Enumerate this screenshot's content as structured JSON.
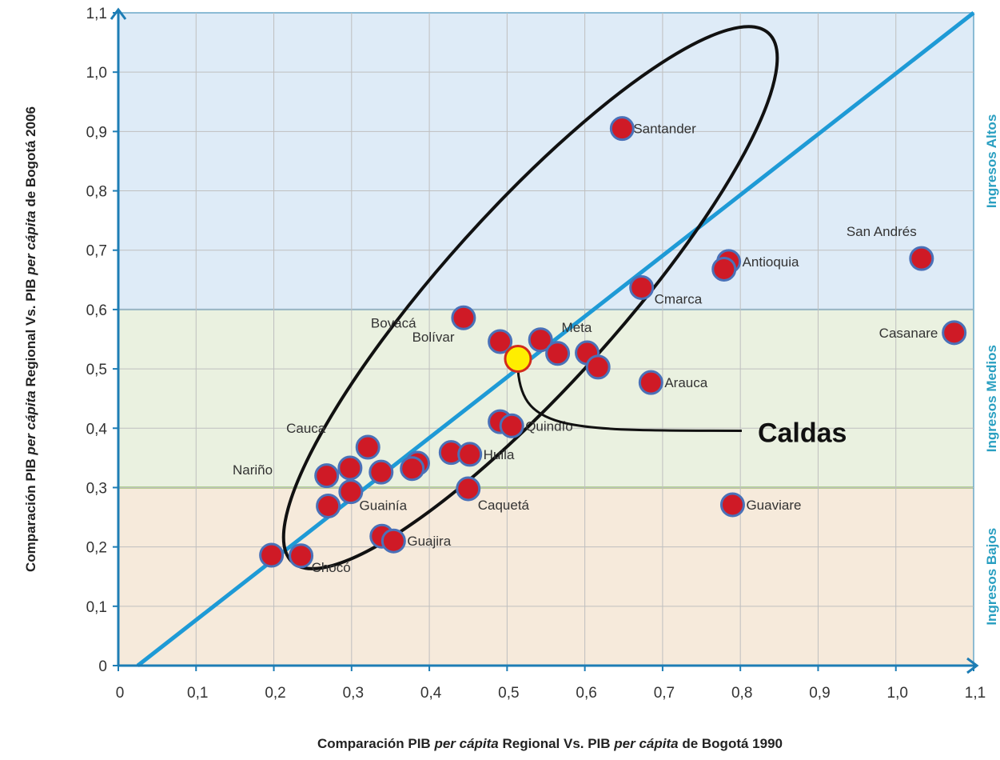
{
  "chart_data": {
    "type": "scatter",
    "xlabel": {
      "pre": "Comparación PIB ",
      "it1": "per cápita",
      "mid": " Regional Vs. PIB ",
      "it2": "per cápita",
      "post": " de Bogotá 1990"
    },
    "ylabel": {
      "pre": "Comparación PIB ",
      "it1": "per cápita",
      "mid": " Regional Vs. PIB ",
      "it2": "per cápita",
      "post": " de Bogotá 2006"
    },
    "xlim": [
      0,
      1.1
    ],
    "ylim": [
      0,
      1.1
    ],
    "x_ticks": [
      "0",
      "0,1",
      "0,2",
      "0,3",
      "0,4",
      "0,5",
      "0,6",
      "0,7",
      "0,8",
      "0,9",
      "1,0",
      "1,1"
    ],
    "y_ticks": [
      "0",
      "0,1",
      "0,2",
      "0,3",
      "0,4",
      "0,5",
      "0,6",
      "0,7",
      "0,8",
      "0,9",
      "1,0",
      "1,1"
    ],
    "grid": true,
    "bands": [
      {
        "label": "Ingresos Bajos",
        "y0": 0,
        "y1": 0.3,
        "color": "#f6eadb"
      },
      {
        "label": "Ingresos Medios",
        "y0": 0.3,
        "y1": 0.6,
        "color": "#eaf1e0"
      },
      {
        "label": "Ingresos Altos",
        "y0": 0.6,
        "y1": 1.1,
        "color": "#deebf7"
      }
    ],
    "reference_line": {
      "x": [
        0.025,
        1.1
      ],
      "y": [
        0,
        1.1
      ],
      "color": "#1e9ad6"
    },
    "points": [
      {
        "x": 0.648,
        "y": 0.905,
        "label": "Santander"
      },
      {
        "x": 1.033,
        "y": 0.686,
        "label": "San Andrés"
      },
      {
        "x": 0.785,
        "y": 0.681,
        "label": "Antioquia"
      },
      {
        "x": 0.779,
        "y": 0.668,
        "label": ""
      },
      {
        "x": 0.673,
        "y": 0.637,
        "label": "Cmarca"
      },
      {
        "x": 1.075,
        "y": 0.561,
        "label": "Casanare"
      },
      {
        "x": 0.444,
        "y": 0.586,
        "label": "Boyacá"
      },
      {
        "x": 0.491,
        "y": 0.546,
        "label": "Bolívar"
      },
      {
        "x": 0.543,
        "y": 0.549,
        "label": ""
      },
      {
        "x": 0.565,
        "y": 0.526,
        "label": ""
      },
      {
        "x": 0.603,
        "y": 0.527,
        "label": "Meta"
      },
      {
        "x": 0.617,
        "y": 0.503,
        "label": ""
      },
      {
        "x": 0.685,
        "y": 0.477,
        "label": "Arauca"
      },
      {
        "x": 0.491,
        "y": 0.411,
        "label": ""
      },
      {
        "x": 0.506,
        "y": 0.404,
        "label": "Quindío"
      },
      {
        "x": 0.321,
        "y": 0.368,
        "label": ""
      },
      {
        "x": 0.428,
        "y": 0.359,
        "label": ""
      },
      {
        "x": 0.452,
        "y": 0.356,
        "label": "Huila"
      },
      {
        "x": 0.385,
        "y": 0.341,
        "label": ""
      },
      {
        "x": 0.298,
        "y": 0.333,
        "label": ""
      },
      {
        "x": 0.378,
        "y": 0.332,
        "label": ""
      },
      {
        "x": 0.338,
        "y": 0.326,
        "label": ""
      },
      {
        "x": 0.268,
        "y": 0.32,
        "label": ""
      },
      {
        "x": 0.45,
        "y": 0.298,
        "label": "Caquetá"
      },
      {
        "x": 0.299,
        "y": 0.293,
        "label": ""
      },
      {
        "x": 0.27,
        "y": 0.269,
        "label": ""
      },
      {
        "x": 0.79,
        "y": 0.271,
        "label": "Guaviare"
      },
      {
        "x": 0.339,
        "y": 0.218,
        "label": ""
      },
      {
        "x": 0.354,
        "y": 0.21,
        "label": "Guajira"
      },
      {
        "x": 0.197,
        "y": 0.186,
        "label": ""
      },
      {
        "x": 0.235,
        "y": 0.185,
        "label": "Chocó"
      }
    ],
    "free_labels": [
      {
        "text": "Cauca",
        "x": 0.216,
        "y": 0.392
      },
      {
        "text": "Nariño",
        "x": 0.147,
        "y": 0.322
      },
      {
        "text": "Guainía",
        "x": 0.31,
        "y": 0.262
      }
    ],
    "highlight": {
      "x": 0.514,
      "y": 0.517,
      "label": "Caldas"
    },
    "colors": {
      "point": "#cf1a26",
      "point_edge": "#4a71b8",
      "highlight": "#ffee00",
      "highlight_edge": "#d22b1c",
      "axis": "#1d7db5",
      "grid": "#bfbfbf",
      "ellipse": "#111111"
    }
  }
}
